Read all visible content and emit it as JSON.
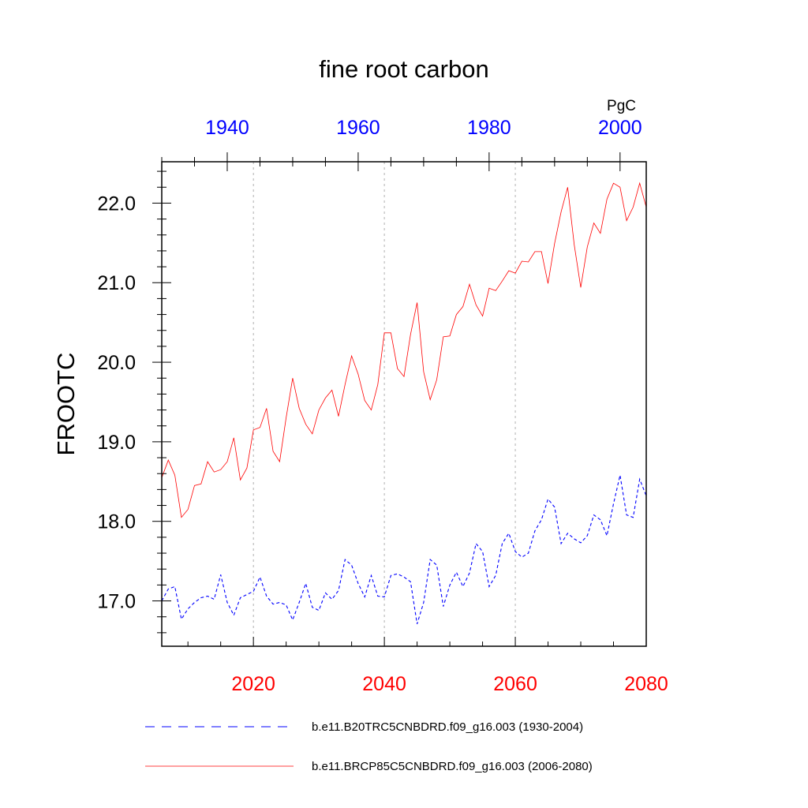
{
  "chart_data": {
    "type": "line",
    "title": "fine root carbon",
    "ylabel": "FROOTC",
    "units": "PgC",
    "ylim": [
      16.43,
      22.52
    ],
    "yticks": [
      17.0,
      18.0,
      19.0,
      20.0,
      21.0,
      22.0
    ],
    "ytick_labels": [
      "17.0",
      "18.0",
      "19.0",
      "20.0",
      "21.0",
      "22.0"
    ],
    "grid": "vertical dotted lines at major bottom-axis ticks",
    "legend_placement": "bottom",
    "x_bottom": {
      "range": [
        2006,
        2080
      ],
      "ticks": [
        2020,
        2040,
        2060,
        2080
      ],
      "tick_labels": [
        "2020",
        "2040",
        "2060",
        "2080"
      ],
      "color": "#ff0000"
    },
    "x_top": {
      "range": [
        1930,
        2004
      ],
      "ticks": [
        1940,
        1960,
        1980,
        2000
      ],
      "tick_labels": [
        "1940",
        "1960",
        "1980",
        "2000"
      ],
      "color": "#0000ff"
    },
    "series": [
      {
        "name": "b.e11.B20TRC5CNBDRD.f09_g16.003 (1930-2004)",
        "axis": "top",
        "color": "#0000ff",
        "style": "dashed",
        "x": [
          1930,
          1931,
          1932,
          1933,
          1934,
          1935,
          1936,
          1937,
          1938,
          1939,
          1940,
          1941,
          1942,
          1943,
          1944,
          1945,
          1946,
          1947,
          1948,
          1949,
          1950,
          1951,
          1952,
          1953,
          1954,
          1955,
          1956,
          1957,
          1958,
          1959,
          1960,
          1961,
          1962,
          1963,
          1964,
          1965,
          1966,
          1967,
          1968,
          1969,
          1970,
          1971,
          1972,
          1973,
          1974,
          1975,
          1976,
          1977,
          1978,
          1979,
          1980,
          1981,
          1982,
          1983,
          1984,
          1985,
          1986,
          1987,
          1988,
          1989,
          1990,
          1991,
          1992,
          1993,
          1994,
          1995,
          1996,
          1997,
          1998,
          1999,
          2000,
          2001,
          2002,
          2003,
          2004
        ],
        "y": [
          17.0,
          17.15,
          17.18,
          16.77,
          16.9,
          16.98,
          17.04,
          17.06,
          17.02,
          17.33,
          16.98,
          16.82,
          17.04,
          17.08,
          17.12,
          17.3,
          17.06,
          16.96,
          16.98,
          16.95,
          16.76,
          16.98,
          17.22,
          16.92,
          16.88,
          17.1,
          17.02,
          17.13,
          17.52,
          17.45,
          17.22,
          17.05,
          17.32,
          17.06,
          17.05,
          17.32,
          17.34,
          17.3,
          17.24,
          16.71,
          16.98,
          17.52,
          17.45,
          16.93,
          17.2,
          17.36,
          17.18,
          17.35,
          17.72,
          17.62,
          17.18,
          17.32,
          17.72,
          17.85,
          17.62,
          17.55,
          17.6,
          17.88,
          18.02,
          18.28,
          18.18,
          17.72,
          17.85,
          17.78,
          17.73,
          17.82,
          18.08,
          18.02,
          17.82,
          18.22,
          18.58,
          18.08,
          18.05,
          18.53,
          18.32
        ]
      },
      {
        "name": "b.e11.BRCP85C5CNBDRD.f09_g16.003 (2006-2080)",
        "axis": "bottom",
        "color": "#ff0000",
        "style": "solid",
        "x": [
          2006,
          2007,
          2008,
          2009,
          2010,
          2011,
          2012,
          2013,
          2014,
          2015,
          2016,
          2017,
          2018,
          2019,
          2020,
          2021,
          2022,
          2023,
          2024,
          2025,
          2026,
          2027,
          2028,
          2029,
          2030,
          2031,
          2032,
          2033,
          2034,
          2035,
          2036,
          2037,
          2038,
          2039,
          2040,
          2041,
          2042,
          2043,
          2044,
          2045,
          2046,
          2047,
          2048,
          2049,
          2050,
          2051,
          2052,
          2053,
          2054,
          2055,
          2056,
          2057,
          2058,
          2059,
          2060,
          2061,
          2062,
          2063,
          2064,
          2065,
          2066,
          2067,
          2068,
          2069,
          2070,
          2071,
          2072,
          2073,
          2074,
          2075,
          2076,
          2077,
          2078,
          2079,
          2080
        ],
        "y": [
          18.55,
          18.77,
          18.58,
          18.05,
          18.15,
          18.45,
          18.47,
          18.75,
          18.62,
          18.65,
          18.75,
          19.05,
          18.52,
          18.67,
          19.15,
          19.18,
          19.42,
          18.88,
          18.75,
          19.3,
          19.8,
          19.42,
          19.22,
          19.1,
          19.4,
          19.55,
          19.65,
          19.32,
          19.72,
          20.08,
          19.85,
          19.52,
          19.4,
          19.72,
          20.37,
          20.37,
          19.92,
          19.82,
          20.35,
          20.75,
          19.88,
          19.53,
          19.78,
          20.32,
          20.33,
          20.6,
          20.7,
          20.98,
          20.72,
          20.58,
          20.93,
          20.9,
          21.02,
          21.15,
          21.12,
          21.27,
          21.26,
          21.39,
          21.39,
          20.99,
          21.49,
          21.89,
          22.2,
          21.48,
          20.94,
          21.45,
          21.75,
          21.62,
          22.05,
          22.25,
          22.2,
          21.78,
          21.95,
          22.25,
          21.95
        ]
      }
    ]
  }
}
